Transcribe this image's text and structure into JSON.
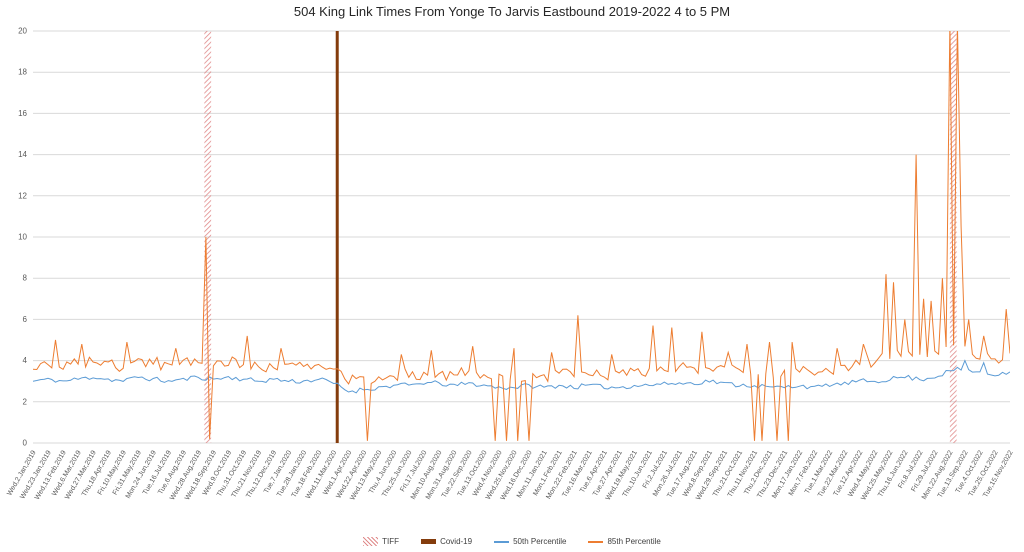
{
  "chart_data": {
    "type": "line",
    "title": "504 King Link Times From Yonge To Jarvis Eastbound 2019-2022 4 to 5 PM",
    "ylabel": "",
    "xlabel": "",
    "ylim": [
      0,
      20
    ],
    "ytick_step": 2,
    "grid": true,
    "legend_position": "bottom",
    "axis_text_color": "#595959",
    "grid_color": "#d9d9d9",
    "noise_seed": 11,
    "x_tick_labels": [
      "Wed,2.Jan,2019",
      "Wed,23.Jan,2019",
      "Wed,13.Feb,2019",
      "Wed,6.Mar,2019",
      "Wed,27.Mar,2019",
      "Thu,18.Apr,2019",
      "Fri,10.May,2019",
      "Fri,31.May,2019",
      "Mon,24.Jun,2019",
      "Tue,16.Jul,2019",
      "Tue,6.Aug,2019",
      "Wed,28.Aug,2019",
      "Wed,18.Sep,2019",
      "Wed,9.Oct,2019",
      "Thu,31.Oct,2019",
      "Thu,21.Nov,2019",
      "Thu,12.Dec,2019",
      "Tue,7.Jan,2020",
      "Tue,28.Jan,2020",
      "Tue,18.Feb,2020",
      "Wed,11.Mar,2020",
      "Wed,1.Apr,2020",
      "Wed,22.Apr,2020",
      "Wed,13.May,2020",
      "Thu,4.Jun,2020",
      "Thu,25.Jun,2020",
      "Fri,17.Jul,2020",
      "Mon,10.Aug,2020",
      "Mon,31.Aug,2020",
      "Tue,22.Sep,2020",
      "Tue,13.Oct,2020",
      "Wed,4.Nov,2020",
      "Wed,25.Nov,2020",
      "Wed,16.Dec,2020",
      "Mon,11.Jan,2021",
      "Mon,1.Feb,2021",
      "Mon,22.Feb,2021",
      "Tue,16.Mar,2021",
      "Tue,6.Apr,2021",
      "Tue,27.Apr,2021",
      "Wed,19.May,2021",
      "Thu,10.Jun,2021",
      "Fri,2.Jul,2021",
      "Mon,26.Jul,2021",
      "Tue,17.Aug,2021",
      "Wed,8.Sep,2021",
      "Wed,29.Sep,2021",
      "Thu,21.Oct,2021",
      "Thu,11.Nov,2021",
      "Thu,2.Dec,2021",
      "Thu,23.Dec,2021",
      "Mon,17.Jan,2022",
      "Mon,7.Feb,2022",
      "Tue,1.Mar,2022",
      "Tue,22.Mar,2022",
      "Tue,12.Apr,2022",
      "Wed,4.May,2022",
      "Wed,25.May,2022",
      "Thu,16.Jun,2022",
      "Fri,8.Jul,2022",
      "Fri,29.Jul,2022",
      "Mon,22.Aug,2022",
      "Tue,13.Sep,2022",
      "Tue,4.Oct,2022",
      "Tue,25.Oct,2022",
      "Tue,15.Nov,2022"
    ],
    "series": [
      {
        "name": "50th Percentile",
        "color": "#5B9BD5",
        "noise": 0.12,
        "values": [
          3.0,
          3.1,
          3.0,
          3.1,
          3.2,
          3.1,
          3.0,
          3.2,
          3.1,
          3.0,
          3.1,
          3.2,
          3.1,
          3.2,
          3.1,
          3.0,
          3.1,
          3.0,
          3.0,
          3.1,
          2.9,
          2.5,
          2.6,
          2.7,
          2.8,
          2.8,
          2.9,
          2.9,
          2.8,
          2.9,
          2.8,
          2.7,
          2.7,
          2.8,
          2.7,
          2.8,
          2.7,
          2.8,
          2.7,
          2.7,
          2.8,
          2.8,
          2.9,
          2.9,
          2.9,
          3.0,
          2.9,
          2.8,
          2.8,
          2.7,
          2.7,
          2.8,
          2.7,
          2.8,
          2.9,
          3.0,
          3.0,
          3.1,
          3.2,
          3.1,
          3.2,
          3.5,
          3.6,
          3.4,
          3.3,
          3.5
        ],
        "spikes": [
          [
            61.9,
            4.0
          ],
          [
            63.2,
            3.9
          ]
        ]
      },
      {
        "name": "85th Percentile",
        "color": "#ED7D31",
        "noise": 0.3,
        "values": [
          3.6,
          3.8,
          3.7,
          3.9,
          4.0,
          3.8,
          3.7,
          4.0,
          3.9,
          3.8,
          3.9,
          4.0,
          3.8,
          3.9,
          3.8,
          3.7,
          3.8,
          3.7,
          3.7,
          3.8,
          3.5,
          3.0,
          3.1,
          3.2,
          3.3,
          3.3,
          3.4,
          3.4,
          3.3,
          3.4,
          3.3,
          3.2,
          3.2,
          3.3,
          3.2,
          3.4,
          3.3,
          3.4,
          3.3,
          3.3,
          3.4,
          3.5,
          3.6,
          3.6,
          3.6,
          3.7,
          3.6,
          3.5,
          3.5,
          3.4,
          3.4,
          3.5,
          3.4,
          3.6,
          3.7,
          3.9,
          4.0,
          4.2,
          4.4,
          4.3,
          4.5,
          4.8,
          4.6,
          4.2,
          4.0,
          4.3
        ],
        "spikes": [
          [
            1.5,
            5.0
          ],
          [
            3.2,
            4.8
          ],
          [
            6.3,
            4.9
          ],
          [
            9.4,
            4.6
          ],
          [
            11.45,
            10.0
          ],
          [
            11.65,
            0.2
          ],
          [
            14.2,
            5.2
          ],
          [
            16.5,
            4.6
          ],
          [
            22.2,
            0.1
          ],
          [
            24.5,
            4.3
          ],
          [
            26.5,
            4.5
          ],
          [
            29.3,
            4.7
          ],
          [
            30.8,
            0.1
          ],
          [
            31.5,
            0.1
          ],
          [
            31.9,
            4.6
          ],
          [
            32.3,
            0.1
          ],
          [
            33.1,
            0.1
          ],
          [
            34.5,
            4.4
          ],
          [
            36.3,
            6.2
          ],
          [
            38.6,
            4.3
          ],
          [
            41.3,
            5.7
          ],
          [
            42.6,
            5.6
          ],
          [
            44.4,
            5.4
          ],
          [
            46.2,
            4.4
          ],
          [
            47.5,
            4.8
          ],
          [
            47.9,
            0.1
          ],
          [
            48.4,
            0.1
          ],
          [
            49.1,
            4.9
          ],
          [
            49.5,
            0.1
          ],
          [
            50.2,
            0.1
          ],
          [
            50.6,
            4.9
          ],
          [
            53.5,
            4.6
          ],
          [
            55.3,
            4.8
          ],
          [
            56.8,
            8.2
          ],
          [
            57.2,
            7.8
          ],
          [
            58.0,
            6.0
          ],
          [
            58.8,
            14.0
          ],
          [
            59.3,
            7.0
          ],
          [
            59.8,
            6.9
          ],
          [
            60.4,
            8.0
          ],
          [
            61.1,
            20.4
          ],
          [
            61.4,
            20.4
          ],
          [
            61.7,
            10.5
          ],
          [
            62.3,
            6.0
          ],
          [
            63.2,
            5.2
          ],
          [
            64.8,
            6.5
          ]
        ]
      }
    ],
    "events": [
      {
        "name": "TIFF",
        "type": "band",
        "color": "#E08A8A",
        "ranges": [
          [
            11.4,
            11.85
          ],
          [
            61.0,
            61.45
          ]
        ]
      },
      {
        "name": "Covid-19",
        "type": "vline",
        "color": "#843C0C",
        "x": 20.24,
        "width": 3
      }
    ],
    "legend": [
      {
        "label": "TIFF",
        "swatch": "hatch",
        "color": "#E08A8A"
      },
      {
        "label": "Covid-19",
        "swatch": "thick-line",
        "color": "#843C0C"
      },
      {
        "label": "50th Percentile",
        "swatch": "line",
        "color": "#5B9BD5"
      },
      {
        "label": "85th Percentile",
        "swatch": "line",
        "color": "#ED7D31"
      }
    ]
  }
}
